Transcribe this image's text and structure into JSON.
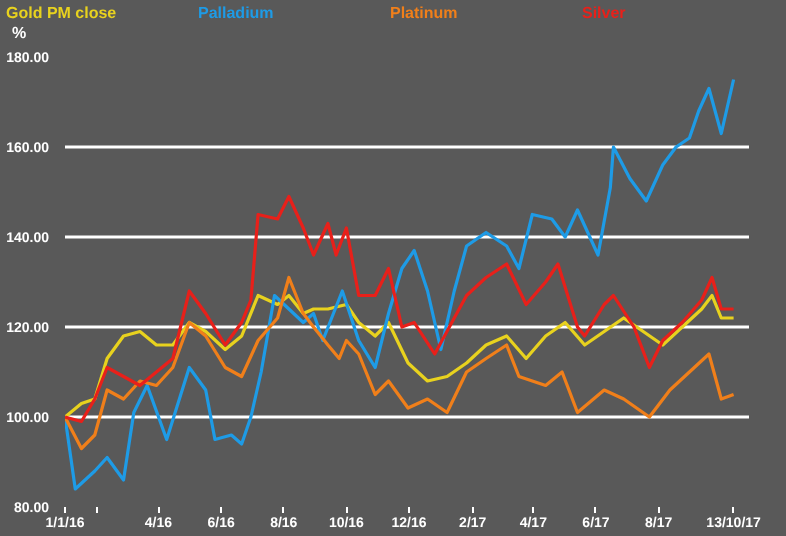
{
  "chart_data": {
    "type": "line",
    "ylabel": "%",
    "grid": "y",
    "line_style": "solid",
    "marker": "none",
    "ylim": [
      80,
      180
    ],
    "yticks": [
      {
        "value": 80,
        "label": "80.00"
      },
      {
        "value": 100,
        "label": "100.00"
      },
      {
        "value": 120,
        "label": "120.00"
      },
      {
        "value": 140,
        "label": "140.00"
      },
      {
        "value": 160,
        "label": "160.00"
      },
      {
        "value": 180,
        "label": "180.00"
      }
    ],
    "xlim": [
      "2016-01-01",
      "2017-10-28"
    ],
    "xticks": [
      {
        "value": "2016-01-01",
        "label": "1/1/16"
      },
      {
        "value": "2016-02-01",
        "label": null
      },
      {
        "value": "2016-04-01",
        "label": "4/16"
      },
      {
        "value": "2016-06-01",
        "label": "6/16"
      },
      {
        "value": "2016-08-01",
        "label": "8/16"
      },
      {
        "value": "2016-10-01",
        "label": "10/16"
      },
      {
        "value": "2016-12-01",
        "label": "12/16"
      },
      {
        "value": "2017-02-01",
        "label": "2/17"
      },
      {
        "value": "2017-04-01",
        "label": "4/17"
      },
      {
        "value": "2017-06-01",
        "label": "6/17"
      },
      {
        "value": "2017-08-01",
        "label": "8/17"
      },
      {
        "value": "2017-10-13",
        "label": "13/10/17"
      }
    ],
    "series": [
      {
        "name": "Gold PM close",
        "color": "#e8d21e",
        "x": [
          "2016-01-01",
          "2016-01-17",
          "2016-01-30",
          "2016-02-11",
          "2016-02-27",
          "2016-03-14",
          "2016-03-30",
          "2016-04-15",
          "2016-05-01",
          "2016-05-17",
          "2016-06-05",
          "2016-06-21",
          "2016-07-07",
          "2016-07-26",
          "2016-08-06",
          "2016-08-20",
          "2016-08-30",
          "2016-09-13",
          "2016-10-01",
          "2016-10-13",
          "2016-10-29",
          "2016-11-11",
          "2016-11-30",
          "2016-12-19",
          "2017-01-07",
          "2017-01-26",
          "2017-02-14",
          "2017-03-06",
          "2017-03-25",
          "2017-04-13",
          "2017-05-02",
          "2017-05-21",
          "2017-06-09",
          "2017-06-28",
          "2017-07-17",
          "2017-08-05",
          "2017-08-24",
          "2017-09-12",
          "2017-09-22",
          "2017-10-01",
          "2017-10-13"
        ],
        "values": [
          100,
          103,
          104,
          113,
          118,
          119,
          116,
          116,
          121,
          119,
          115,
          118,
          127,
          125,
          127,
          123,
          124,
          124,
          125,
          121,
          118,
          121,
          112,
          108,
          109,
          112,
          116,
          118,
          113,
          118,
          121,
          116,
          119,
          122,
          119,
          116,
          120,
          124,
          127,
          122,
          122
        ]
      },
      {
        "name": "Palladium",
        "color": "#1e9be6",
        "x": [
          "2016-01-01",
          "2016-01-11",
          "2016-01-30",
          "2016-02-11",
          "2016-02-27",
          "2016-03-08",
          "2016-03-21",
          "2016-04-09",
          "2016-05-01",
          "2016-05-17",
          "2016-05-26",
          "2016-06-11",
          "2016-06-21",
          "2016-06-30",
          "2016-07-10",
          "2016-07-23",
          "2016-08-06",
          "2016-08-20",
          "2016-08-30",
          "2016-09-08",
          "2016-09-27",
          "2016-10-13",
          "2016-10-29",
          "2016-11-11",
          "2016-11-24",
          "2016-12-06",
          "2016-12-19",
          "2017-01-01",
          "2017-01-14",
          "2017-01-26",
          "2017-02-14",
          "2017-03-06",
          "2017-03-18",
          "2017-03-31",
          "2017-04-19",
          "2017-05-02",
          "2017-05-14",
          "2017-06-03",
          "2017-06-15",
          "2017-06-18",
          "2017-07-04",
          "2017-07-20",
          "2017-08-05",
          "2017-08-18",
          "2017-08-31",
          "2017-09-09",
          "2017-09-19",
          "2017-10-01",
          "2017-10-13"
        ],
        "values": [
          100,
          84,
          88,
          91,
          86,
          101,
          107,
          95,
          111,
          106,
          95,
          96,
          94,
          100,
          110,
          127,
          124,
          121,
          123,
          117,
          128,
          117,
          111,
          123,
          133,
          137,
          128,
          115,
          128,
          138,
          141,
          138,
          133,
          145,
          144,
          140,
          146,
          136,
          151,
          160,
          153,
          148,
          156,
          160,
          162,
          168,
          173,
          163,
          175
        ]
      },
      {
        "name": "Platinum",
        "color": "#f07f1a",
        "x": [
          "2016-01-01",
          "2016-01-17",
          "2016-01-30",
          "2016-02-11",
          "2016-02-27",
          "2016-03-14",
          "2016-03-30",
          "2016-04-15",
          "2016-05-01",
          "2016-05-17",
          "2016-06-05",
          "2016-06-21",
          "2016-07-07",
          "2016-07-26",
          "2016-08-06",
          "2016-08-20",
          "2016-08-30",
          "2016-09-13",
          "2016-09-24",
          "2016-10-01",
          "2016-10-13",
          "2016-10-29",
          "2016-11-11",
          "2016-11-30",
          "2016-12-19",
          "2017-01-07",
          "2017-01-26",
          "2017-02-14",
          "2017-03-06",
          "2017-03-18",
          "2017-04-13",
          "2017-04-29",
          "2017-05-14",
          "2017-06-09",
          "2017-06-28",
          "2017-07-23",
          "2017-08-12",
          "2017-08-31",
          "2017-09-19",
          "2017-10-01",
          "2017-10-13"
        ],
        "values": [
          100,
          93,
          96,
          106,
          104,
          108,
          107,
          111,
          121,
          118,
          111,
          109,
          117,
          122,
          131,
          123,
          120,
          116,
          113,
          117,
          114,
          105,
          108,
          102,
          104,
          101,
          110,
          113,
          116,
          109,
          107,
          110,
          101,
          106,
          104,
          100,
          106,
          110,
          114,
          104,
          105
        ]
      },
      {
        "name": "Silver",
        "color": "#e8201a",
        "x": [
          "2016-01-01",
          "2016-01-17",
          "2016-01-30",
          "2016-02-11",
          "2016-02-27",
          "2016-03-14",
          "2016-03-30",
          "2016-04-15",
          "2016-05-01",
          "2016-05-17",
          "2016-06-05",
          "2016-06-21",
          "2016-06-30",
          "2016-07-07",
          "2016-07-26",
          "2016-08-06",
          "2016-08-20",
          "2016-08-30",
          "2016-09-13",
          "2016-09-21",
          "2016-10-01",
          "2016-10-13",
          "2016-10-29",
          "2016-11-11",
          "2016-11-24",
          "2016-12-06",
          "2016-12-26",
          "2017-01-14",
          "2017-01-26",
          "2017-02-14",
          "2017-03-06",
          "2017-03-25",
          "2017-04-13",
          "2017-04-25",
          "2017-05-14",
          "2017-05-21",
          "2017-06-09",
          "2017-06-18",
          "2017-07-08",
          "2017-07-23",
          "2017-08-05",
          "2017-08-24",
          "2017-09-12",
          "2017-09-22",
          "2017-10-01",
          "2017-10-13"
        ],
        "values": [
          100,
          99,
          104,
          111,
          109,
          107,
          110,
          113,
          128,
          123,
          116,
          121,
          126,
          145,
          144,
          149,
          142,
          136,
          143,
          136,
          142,
          127,
          127,
          133,
          120,
          121,
          114,
          122,
          127,
          131,
          134,
          125,
          130,
          134,
          120,
          118,
          125,
          127,
          120,
          111,
          117,
          121,
          126,
          131,
          124,
          124
        ]
      }
    ]
  }
}
